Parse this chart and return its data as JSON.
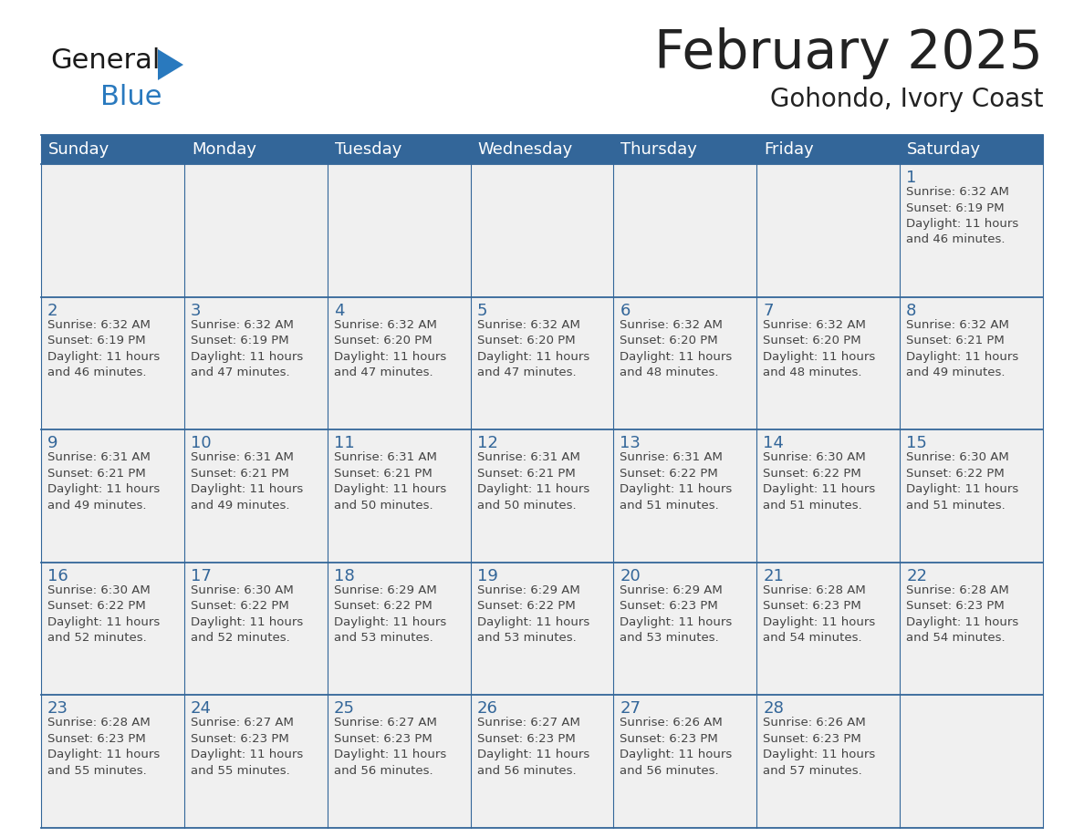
{
  "title": "February 2025",
  "subtitle": "Gohondo, Ivory Coast",
  "header_color": "#336699",
  "header_text_color": "#FFFFFF",
  "day_names": [
    "Sunday",
    "Monday",
    "Tuesday",
    "Wednesday",
    "Thursday",
    "Friday",
    "Saturday"
  ],
  "background_color": "#FFFFFF",
  "cell_bg_color": "#F0F0F0",
  "day_num_color": "#336699",
  "text_color": "#222222",
  "info_text_color": "#444444",
  "line_color": "#336699",
  "title_fontsize": 42,
  "subtitle_fontsize": 20,
  "day_name_fontsize": 13,
  "day_num_fontsize": 13,
  "info_fontsize": 9.5,
  "calendar": [
    [
      {
        "day": null,
        "info": null
      },
      {
        "day": null,
        "info": null
      },
      {
        "day": null,
        "info": null
      },
      {
        "day": null,
        "info": null
      },
      {
        "day": null,
        "info": null
      },
      {
        "day": null,
        "info": null
      },
      {
        "day": 1,
        "info": "Sunrise: 6:32 AM\nSunset: 6:19 PM\nDaylight: 11 hours\nand 46 minutes."
      }
    ],
    [
      {
        "day": 2,
        "info": "Sunrise: 6:32 AM\nSunset: 6:19 PM\nDaylight: 11 hours\nand 46 minutes."
      },
      {
        "day": 3,
        "info": "Sunrise: 6:32 AM\nSunset: 6:19 PM\nDaylight: 11 hours\nand 47 minutes."
      },
      {
        "day": 4,
        "info": "Sunrise: 6:32 AM\nSunset: 6:20 PM\nDaylight: 11 hours\nand 47 minutes."
      },
      {
        "day": 5,
        "info": "Sunrise: 6:32 AM\nSunset: 6:20 PM\nDaylight: 11 hours\nand 47 minutes."
      },
      {
        "day": 6,
        "info": "Sunrise: 6:32 AM\nSunset: 6:20 PM\nDaylight: 11 hours\nand 48 minutes."
      },
      {
        "day": 7,
        "info": "Sunrise: 6:32 AM\nSunset: 6:20 PM\nDaylight: 11 hours\nand 48 minutes."
      },
      {
        "day": 8,
        "info": "Sunrise: 6:32 AM\nSunset: 6:21 PM\nDaylight: 11 hours\nand 49 minutes."
      }
    ],
    [
      {
        "day": 9,
        "info": "Sunrise: 6:31 AM\nSunset: 6:21 PM\nDaylight: 11 hours\nand 49 minutes."
      },
      {
        "day": 10,
        "info": "Sunrise: 6:31 AM\nSunset: 6:21 PM\nDaylight: 11 hours\nand 49 minutes."
      },
      {
        "day": 11,
        "info": "Sunrise: 6:31 AM\nSunset: 6:21 PM\nDaylight: 11 hours\nand 50 minutes."
      },
      {
        "day": 12,
        "info": "Sunrise: 6:31 AM\nSunset: 6:21 PM\nDaylight: 11 hours\nand 50 minutes."
      },
      {
        "day": 13,
        "info": "Sunrise: 6:31 AM\nSunset: 6:22 PM\nDaylight: 11 hours\nand 51 minutes."
      },
      {
        "day": 14,
        "info": "Sunrise: 6:30 AM\nSunset: 6:22 PM\nDaylight: 11 hours\nand 51 minutes."
      },
      {
        "day": 15,
        "info": "Sunrise: 6:30 AM\nSunset: 6:22 PM\nDaylight: 11 hours\nand 51 minutes."
      }
    ],
    [
      {
        "day": 16,
        "info": "Sunrise: 6:30 AM\nSunset: 6:22 PM\nDaylight: 11 hours\nand 52 minutes."
      },
      {
        "day": 17,
        "info": "Sunrise: 6:30 AM\nSunset: 6:22 PM\nDaylight: 11 hours\nand 52 minutes."
      },
      {
        "day": 18,
        "info": "Sunrise: 6:29 AM\nSunset: 6:22 PM\nDaylight: 11 hours\nand 53 minutes."
      },
      {
        "day": 19,
        "info": "Sunrise: 6:29 AM\nSunset: 6:22 PM\nDaylight: 11 hours\nand 53 minutes."
      },
      {
        "day": 20,
        "info": "Sunrise: 6:29 AM\nSunset: 6:23 PM\nDaylight: 11 hours\nand 53 minutes."
      },
      {
        "day": 21,
        "info": "Sunrise: 6:28 AM\nSunset: 6:23 PM\nDaylight: 11 hours\nand 54 minutes."
      },
      {
        "day": 22,
        "info": "Sunrise: 6:28 AM\nSunset: 6:23 PM\nDaylight: 11 hours\nand 54 minutes."
      }
    ],
    [
      {
        "day": 23,
        "info": "Sunrise: 6:28 AM\nSunset: 6:23 PM\nDaylight: 11 hours\nand 55 minutes."
      },
      {
        "day": 24,
        "info": "Sunrise: 6:27 AM\nSunset: 6:23 PM\nDaylight: 11 hours\nand 55 minutes."
      },
      {
        "day": 25,
        "info": "Sunrise: 6:27 AM\nSunset: 6:23 PM\nDaylight: 11 hours\nand 56 minutes."
      },
      {
        "day": 26,
        "info": "Sunrise: 6:27 AM\nSunset: 6:23 PM\nDaylight: 11 hours\nand 56 minutes."
      },
      {
        "day": 27,
        "info": "Sunrise: 6:26 AM\nSunset: 6:23 PM\nDaylight: 11 hours\nand 56 minutes."
      },
      {
        "day": 28,
        "info": "Sunrise: 6:26 AM\nSunset: 6:23 PM\nDaylight: 11 hours\nand 57 minutes."
      },
      {
        "day": null,
        "info": null
      }
    ]
  ],
  "logo_general_color": "#1a1a1a",
  "logo_blue_color": "#2979BE",
  "logo_triangle_color": "#2979BE"
}
